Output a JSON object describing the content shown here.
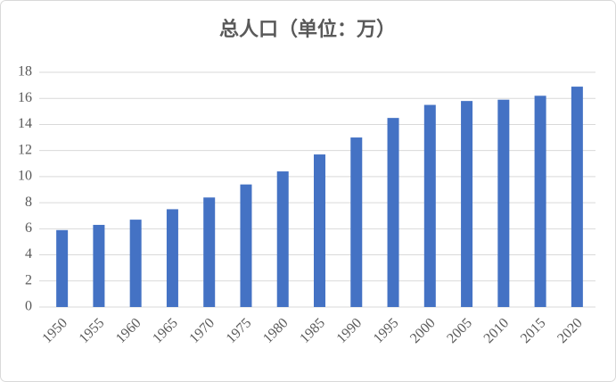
{
  "chart_data": {
    "type": "bar",
    "title": "总人口（单位：万）",
    "categories": [
      "1950",
      "1955",
      "1960",
      "1965",
      "1970",
      "1975",
      "1980",
      "1985",
      "1990",
      "1995",
      "2000",
      "2005",
      "2010",
      "2015",
      "2020"
    ],
    "values": [
      5.9,
      6.3,
      6.7,
      7.5,
      8.4,
      9.4,
      10.4,
      11.7,
      13.0,
      14.5,
      15.5,
      15.8,
      15.9,
      16.2,
      16.9
    ],
    "color": "#4472c4",
    "ylim": [
      0,
      18
    ],
    "yticks": [
      0,
      2,
      4,
      6,
      8,
      10,
      12,
      14,
      16,
      18
    ],
    "grid": true
  }
}
